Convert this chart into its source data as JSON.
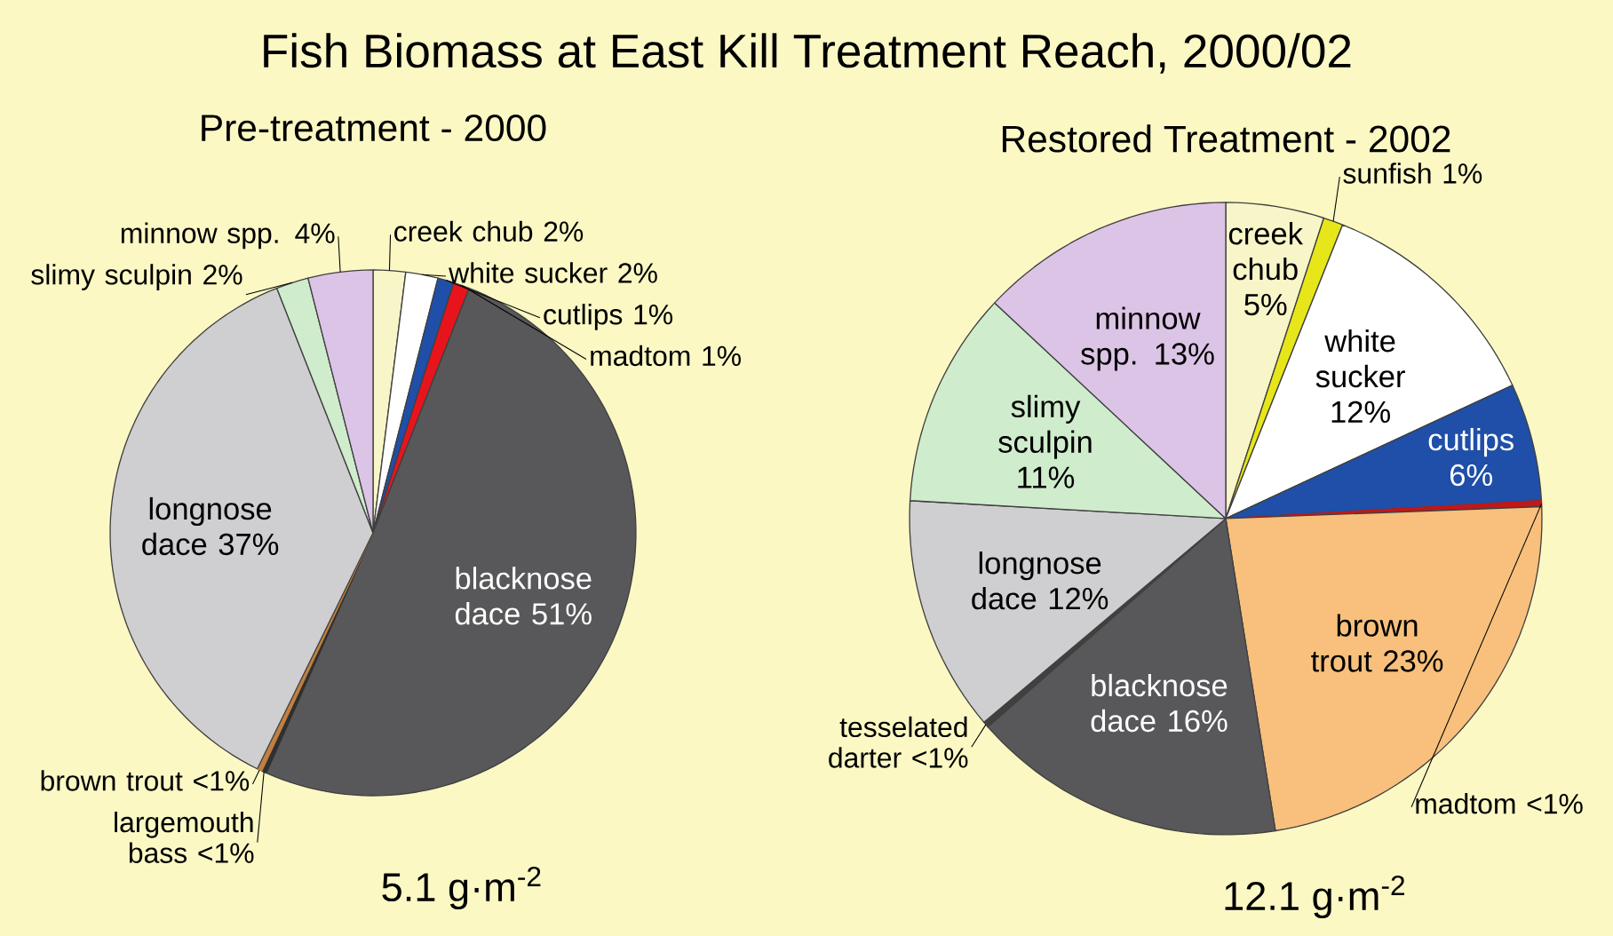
{
  "chart_data": [
    {
      "type": "pie",
      "title": "Fish Biomass at East Kill Treatment Reach, 2000/02",
      "subtitle": "Pre-treatment - 2000",
      "categories": [
        "creek chub",
        "white sucker",
        "cutlips",
        "madtom",
        "blacknose dace",
        "largemouth bass",
        "brown trout",
        "longnose dace",
        "slimy sculpin",
        "minnow spp."
      ],
      "values": [
        2,
        2,
        1,
        1,
        51,
        0.3,
        0.3,
        37,
        2,
        4
      ],
      "value_labels": [
        "2%",
        "2%",
        "1%",
        "1%",
        "51%",
        "<1%",
        "<1%",
        "37%",
        "2%",
        "4%"
      ],
      "colors": [
        "#f8f5c8",
        "#ffffff",
        "#1f4fa8",
        "#e8141c",
        "#58585a",
        "#303030",
        "#c08040",
        "#cfcfd1",
        "#cfeccc",
        "#dcc4e6"
      ],
      "annotations": [
        "5.1 g·m$^{-2}$"
      ]
    },
    {
      "type": "pie",
      "title": "Restored Treatment - 2002",
      "categories": [
        "creek chub",
        "sunfish",
        "white sucker",
        "cutlips",
        "madtom",
        "brown trout",
        "blacknose dace",
        "tesselated darter",
        "longnose dace",
        "slimy sculpin",
        "minnow spp."
      ],
      "values": [
        5,
        1,
        12,
        6,
        0.3,
        23,
        16,
        0.3,
        12,
        11,
        13
      ],
      "value_labels": [
        "5%",
        "1%",
        "12%",
        "6%",
        "<1%",
        "23%",
        "16%",
        "<1%",
        "12%",
        "11%",
        "13%"
      ],
      "colors": [
        "#f8f5c8",
        "#e6e61a",
        "#ffffff",
        "#1f4fa8",
        "#c01818",
        "#f8c07c",
        "#58585a",
        "#404040",
        "#cfcfd1",
        "#cfeccc",
        "#dcc4e6"
      ],
      "annotations": [
        "12.1 g·m$^{-2}$"
      ]
    }
  ]
}
